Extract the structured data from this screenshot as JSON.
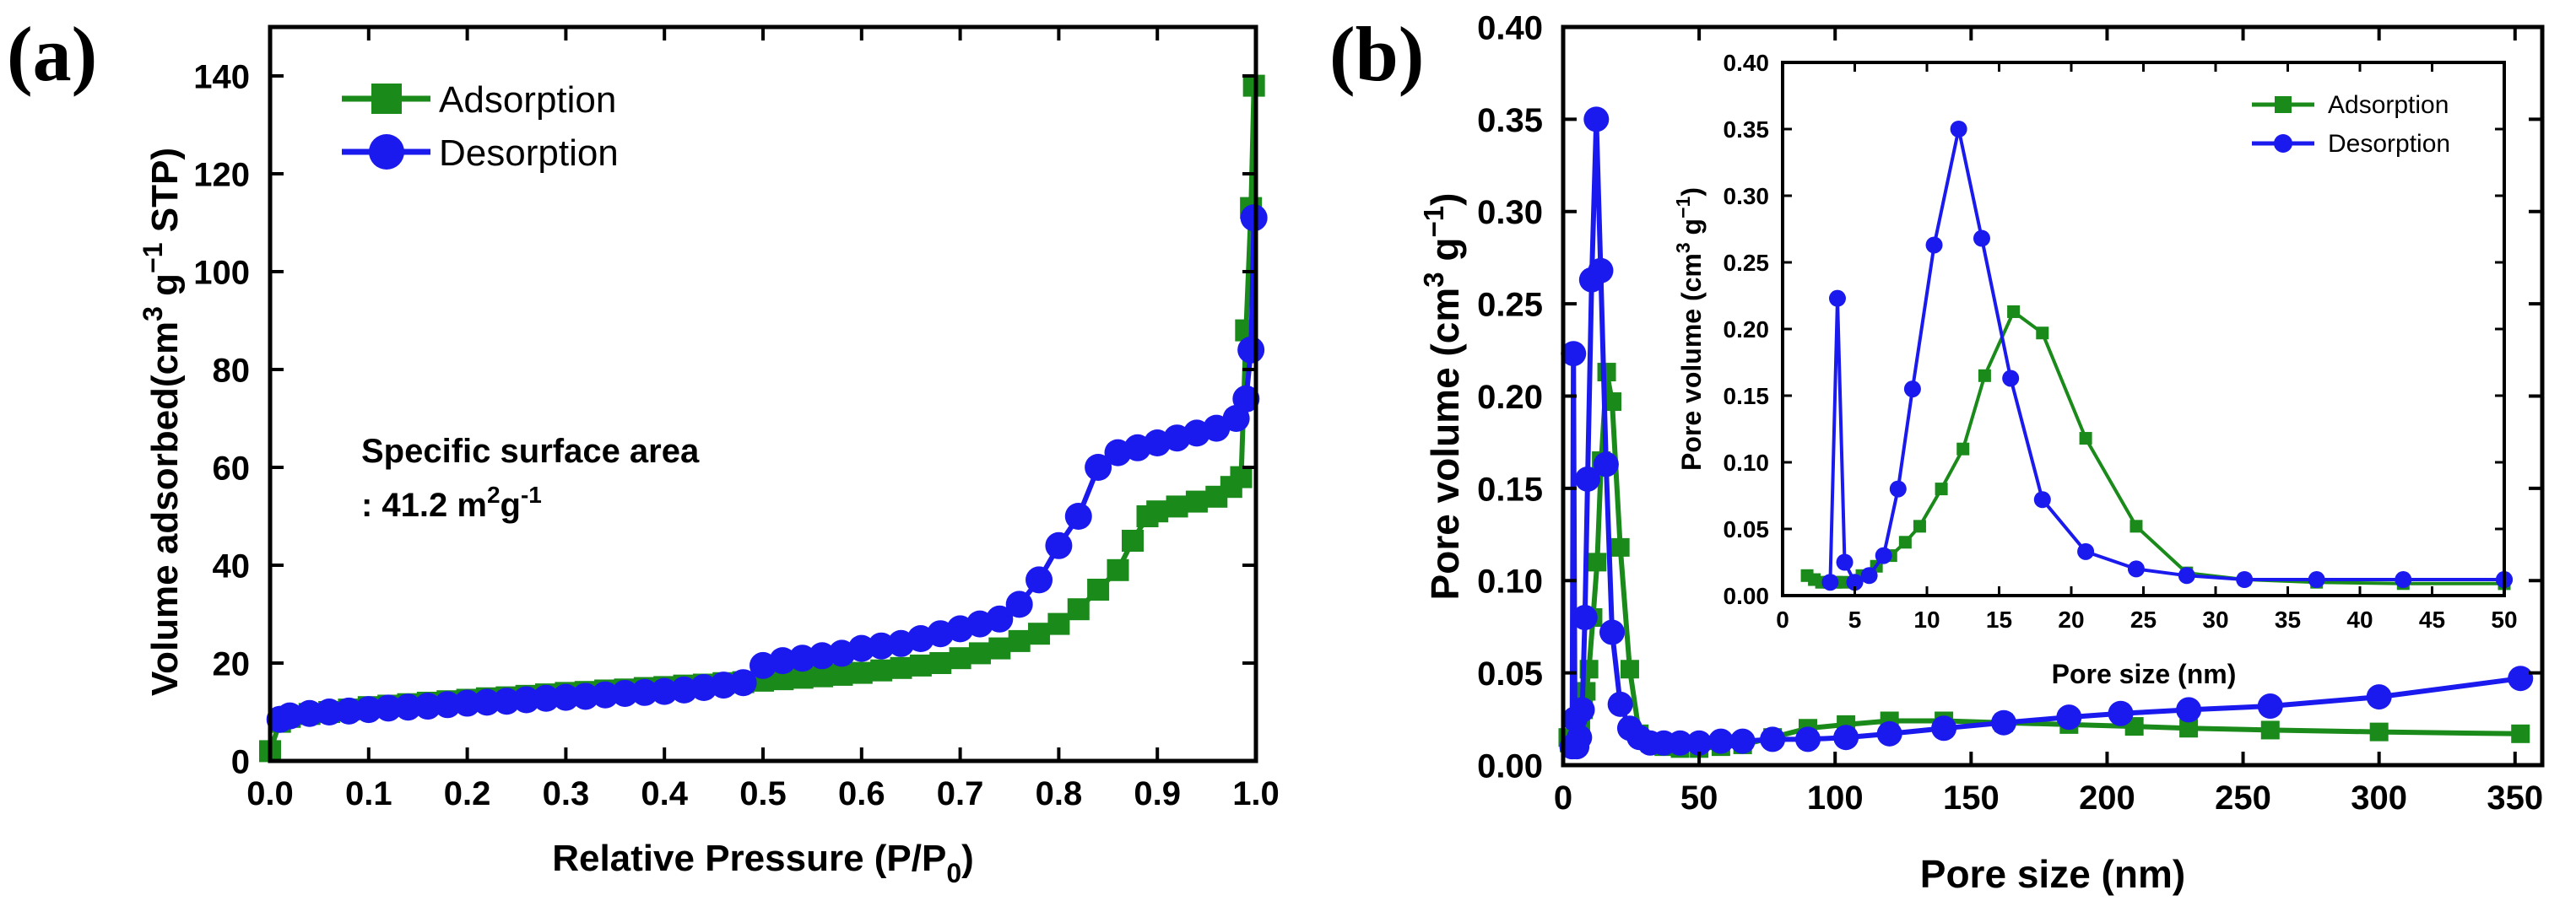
{
  "colors": {
    "adsorption": "#1a8a1a",
    "desorption": "#1a1aee",
    "axis": "#000000"
  },
  "chart_data": [
    {
      "id": "a",
      "panel_label": "(a)",
      "type": "line",
      "xlabel": "Relative Pressure (P/P",
      "xlabel_sub": "0",
      "xlabel_end": ")",
      "ylabel": "Volume adsorbed(cm",
      "ylabel_sup": "3",
      "ylabel_mid": " g",
      "ylabel_sup2": "−1",
      "ylabel_end": " STP)",
      "xlim": [
        0,
        1.0
      ],
      "ylim": [
        0,
        150
      ],
      "xticks": [
        0.0,
        0.1,
        0.2,
        0.3,
        0.4,
        0.5,
        0.6,
        0.7,
        0.8,
        0.9,
        1.0
      ],
      "xtick_labels": [
        "0.0",
        "0.1",
        "0.2",
        "0.3",
        "0.4",
        "0.5",
        "0.6",
        "0.7",
        "0.8",
        "0.9",
        "1.0"
      ],
      "yticks": [
        0,
        20,
        40,
        60,
        80,
        100,
        120,
        140
      ],
      "ytick_labels": [
        "0",
        "20",
        "40",
        "60",
        "80",
        "100",
        "120",
        "140"
      ],
      "legend": [
        "Adsorption",
        "Desorption"
      ],
      "annotation_line1": "Specific surface area",
      "annotation_line2_prefix": ": 41.2 m",
      "annotation_sup1": "2",
      "annotation_mid": "g",
      "annotation_sup2": "-1",
      "series": [
        {
          "name": "Adsorption",
          "marker": "square",
          "x": [
            0.0,
            0.01,
            0.02,
            0.04,
            0.06,
            0.08,
            0.1,
            0.12,
            0.14,
            0.16,
            0.18,
            0.2,
            0.22,
            0.24,
            0.26,
            0.28,
            0.3,
            0.32,
            0.34,
            0.36,
            0.38,
            0.4,
            0.42,
            0.44,
            0.46,
            0.48,
            0.5,
            0.52,
            0.54,
            0.56,
            0.58,
            0.6,
            0.62,
            0.64,
            0.66,
            0.68,
            0.7,
            0.72,
            0.74,
            0.76,
            0.78,
            0.8,
            0.82,
            0.84,
            0.86,
            0.875,
            0.89,
            0.9,
            0.92,
            0.94,
            0.96,
            0.975,
            0.985,
            0.99,
            0.995,
            0.998
          ],
          "y": [
            2,
            8,
            9,
            9.6,
            10,
            10.5,
            11,
            11.3,
            11.6,
            11.9,
            12.2,
            12.5,
            12.8,
            13,
            13.3,
            13.6,
            13.9,
            14.1,
            14.4,
            14.6,
            14.9,
            15.1,
            15.4,
            15.6,
            15.9,
            16.1,
            16.4,
            16.7,
            17,
            17.3,
            17.6,
            18,
            18.5,
            19,
            19.5,
            20,
            21,
            22,
            23,
            24.5,
            26,
            28,
            31,
            35,
            39,
            45,
            50,
            51,
            52,
            53,
            54,
            56,
            58,
            88,
            113,
            138
          ]
        },
        {
          "name": "Desorption",
          "marker": "circle",
          "x": [
            0.998,
            0.995,
            0.99,
            0.98,
            0.96,
            0.94,
            0.92,
            0.9,
            0.88,
            0.86,
            0.84,
            0.82,
            0.8,
            0.78,
            0.76,
            0.74,
            0.72,
            0.7,
            0.68,
            0.66,
            0.64,
            0.62,
            0.6,
            0.58,
            0.56,
            0.54,
            0.52,
            0.5,
            0.48,
            0.46,
            0.44,
            0.42,
            0.4,
            0.38,
            0.36,
            0.34,
            0.32,
            0.3,
            0.28,
            0.26,
            0.24,
            0.22,
            0.2,
            0.18,
            0.16,
            0.14,
            0.12,
            0.1,
            0.08,
            0.06,
            0.04,
            0.02,
            0.01
          ],
          "y": [
            111,
            84,
            74,
            70,
            68,
            67,
            66,
            65,
            64,
            63,
            60,
            50,
            44,
            37,
            32,
            29,
            28,
            27,
            26,
            25,
            24,
            23.5,
            23,
            22,
            21.5,
            21,
            20.5,
            19.5,
            16,
            15.5,
            15,
            14.5,
            14.2,
            14,
            13.8,
            13.5,
            13.2,
            13,
            12.8,
            12.5,
            12.2,
            12,
            11.8,
            11.5,
            11.2,
            11,
            10.8,
            10.5,
            10.2,
            10,
            9.7,
            9.2,
            8.5
          ]
        }
      ]
    },
    {
      "id": "b",
      "panel_label": "(b)",
      "type": "line",
      "xlabel": "Pore size (nm)",
      "ylabel": "Pore volume (cm",
      "ylabel_sup": "3",
      "ylabel_mid": " g",
      "ylabel_sup2": "−1",
      "ylabel_end": ")",
      "xlim": [
        0,
        360
      ],
      "ylim": [
        0,
        0.4
      ],
      "xticks": [
        0,
        50,
        100,
        150,
        200,
        250,
        300,
        350
      ],
      "xtick_labels": [
        "0",
        "50",
        "100",
        "150",
        "200",
        "250",
        "300",
        "350"
      ],
      "yticks": [
        0,
        0.05,
        0.1,
        0.15,
        0.2,
        0.25,
        0.3,
        0.35,
        0.4
      ],
      "ytick_labels": [
        "0.00",
        "0.05",
        "0.10",
        "0.15",
        "0.20",
        "0.25",
        "0.30",
        "0.35",
        "0.40"
      ],
      "series": [
        {
          "name": "Adsorption",
          "marker": "square",
          "x": [
            1.7,
            2.2,
            2.7,
            3.2,
            3.7,
            4.2,
            5.5,
            6.5,
            7.5,
            8.5,
            9.5,
            11,
            12.5,
            14,
            16,
            18,
            21,
            24.5,
            28,
            32,
            37,
            43,
            50,
            58,
            66,
            77,
            90,
            104,
            120,
            140,
            162,
            186,
            210,
            230,
            260,
            300,
            352
          ],
          "y": [
            0.015,
            0.012,
            0.01,
            0.01,
            0.01,
            0.01,
            0.015,
            0.022,
            0.03,
            0.04,
            0.052,
            0.08,
            0.11,
            0.165,
            0.213,
            0.197,
            0.118,
            0.052,
            0.017,
            0.012,
            0.01,
            0.009,
            0.009,
            0.01,
            0.011,
            0.015,
            0.02,
            0.022,
            0.024,
            0.024,
            0.023,
            0.022,
            0.021,
            0.02,
            0.019,
            0.018,
            0.017
          ]
        },
        {
          "name": "Desorption",
          "marker": "circle",
          "x": [
            3.3,
            3.8,
            4.3,
            5,
            6,
            7,
            8,
            9,
            10.5,
            12.2,
            13.8,
            15.8,
            18,
            21,
            24.5,
            28,
            32,
            37,
            43,
            50,
            58,
            66,
            77,
            90,
            104,
            120,
            140,
            162,
            186,
            205,
            230,
            260,
            300,
            352
          ],
          "y": [
            0.01,
            0.223,
            0.025,
            0.01,
            0.015,
            0.03,
            0.08,
            0.155,
            0.263,
            0.35,
            0.268,
            0.163,
            0.072,
            0.033,
            0.02,
            0.015,
            0.012,
            0.012,
            0.012,
            0.012,
            0.013,
            0.013,
            0.014,
            0.014,
            0.015,
            0.017,
            0.02,
            0.023,
            0.026,
            0.028,
            0.03,
            0.032,
            0.037,
            0.047
          ]
        }
      ],
      "inset": {
        "xlabel": "Pore size (nm)",
        "ylabel": "Pore volume (cm",
        "ylabel_sup": "3",
        "ylabel_mid": " g",
        "ylabel_sup2": "−1",
        "ylabel_end": ")",
        "xlim": [
          0,
          50
        ],
        "ylim": [
          0,
          0.4
        ],
        "xticks": [
          0,
          5,
          10,
          15,
          20,
          25,
          30,
          35,
          40,
          45,
          50
        ],
        "xtick_labels": [
          "0",
          "5",
          "10",
          "15",
          "20",
          "25",
          "30",
          "35",
          "40",
          "45",
          "50"
        ],
        "yticks": [
          0,
          0.05,
          0.1,
          0.15,
          0.2,
          0.25,
          0.3,
          0.35,
          0.4
        ],
        "ytick_labels": [
          "0.00",
          "0.05",
          "0.10",
          "0.15",
          "0.20",
          "0.25",
          "0.30",
          "0.35",
          "0.40"
        ],
        "legend": [
          "Adsorption",
          "Desorption"
        ]
      }
    }
  ]
}
